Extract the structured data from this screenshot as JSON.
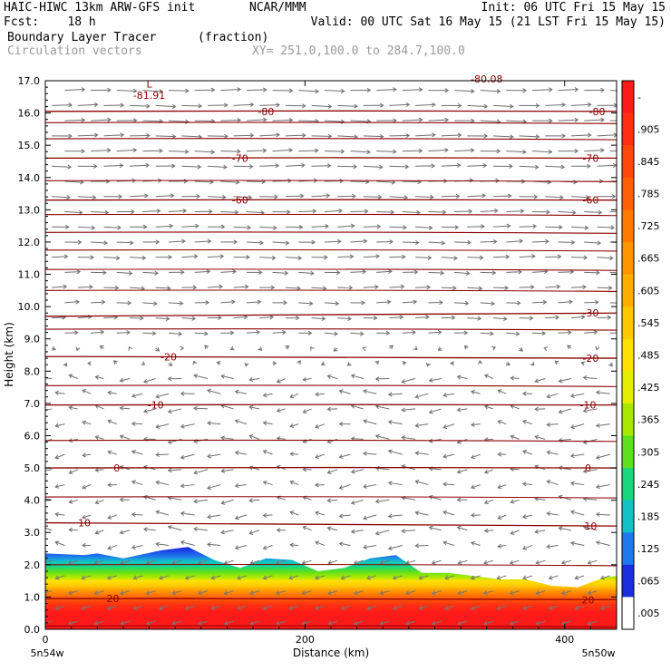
{
  "header": {
    "model": "HAIC-HIWC 13km ARW-GFS init",
    "org": "NCAR/MMM",
    "init": "Init: 06 UTC Fri 15 May 15",
    "fcst": "Fcst:    18 h",
    "valid": "Valid: 00 UTC Sat 16 May 15 (21 LST Fri 15 May 15)",
    "field": "Boundary Layer Tracer",
    "units": "(fraction)",
    "vectors": "Circulation vectors",
    "xy": "XY= 251.0,100.0 to 284.7,100.0"
  },
  "chart_data": {
    "type": "heatmap",
    "xlabel": "Distance (km)",
    "ylabel": "Height (km)",
    "xlim": [
      0,
      440
    ],
    "ylim": [
      0.0,
      17.0
    ],
    "x_ticks": [
      "0",
      "200",
      "400"
    ],
    "x_tick_values": [
      0,
      200,
      400
    ],
    "y_ticks": [
      "0.0",
      "1.0",
      "2.0",
      "3.0",
      "4.0",
      "5.0",
      "6.0",
      "7.0",
      "8.0",
      "9.0",
      "10.0",
      "11.0",
      "12.0",
      "13.0",
      "14.0",
      "15.0",
      "16.0",
      "17.0"
    ],
    "x_left_label": "5n54w",
    "x_right_label": "5n50w",
    "colorbar": {
      "labels": [
        "-",
        ".905",
        ".845",
        ".785",
        ".725",
        ".665",
        ".605",
        ".545",
        ".485",
        ".425",
        ".365",
        ".305",
        ".245",
        ".185",
        ".125",
        ".065",
        ".005"
      ],
      "colors": [
        "#ff1a1a",
        "#ff2e12",
        "#ff470c",
        "#ff6006",
        "#ff7a00",
        "#ff9500",
        "#ffae00",
        "#ffc800",
        "#ffe000",
        "#e6ee00",
        "#a8e800",
        "#5fe01c",
        "#19d77f",
        "#12c2c6",
        "#1f78ee",
        "#1a2ee0",
        "#ffffff"
      ]
    },
    "boundary_layer_top_km": {
      "x": [
        0,
        30,
        40,
        60,
        90,
        110,
        130,
        150,
        170,
        190,
        210,
        230,
        250,
        270,
        290,
        310,
        330,
        350,
        370,
        390,
        410,
        430,
        440
      ],
      "y": [
        2.35,
        2.3,
        2.35,
        2.2,
        2.45,
        2.55,
        2.15,
        1.9,
        2.2,
        2.15,
        1.8,
        1.9,
        2.2,
        2.3,
        1.75,
        1.75,
        1.65,
        1.55,
        1.55,
        1.35,
        1.3,
        1.6,
        1.65
      ]
    },
    "temperature_contours": [
      {
        "value": 20,
        "label": "20",
        "y": [
          0.95,
          0.92
        ],
        "label_positions": [
          {
            "x": 52,
            "y": 0.95
          },
          {
            "x": 418,
            "y": 0.92
          }
        ]
      },
      {
        "value": 10,
        "label": "10",
        "y": [
          3.3,
          3.2
        ],
        "label_positions": [
          {
            "x": 30,
            "y": 3.3
          },
          {
            "x": 420,
            "y": 3.2
          }
        ]
      },
      {
        "value": 0,
        "label": "0",
        "y": [
          5.0,
          5.0
        ],
        "label_positions": [
          {
            "x": 55,
            "y": 5.0
          },
          {
            "x": 418,
            "y": 5.0
          }
        ]
      },
      {
        "value": -10,
        "label": "-10",
        "y": [
          6.95,
          6.95
        ],
        "label_positions": [
          {
            "x": 85,
            "y": 6.95
          },
          {
            "x": 418,
            "y": 6.95
          }
        ]
      },
      {
        "value": -20,
        "label": "-20",
        "y": [
          8.45,
          8.4
        ],
        "label_positions": [
          {
            "x": 95,
            "y": 8.45
          },
          {
            "x": 420,
            "y": 8.4
          }
        ]
      },
      {
        "value": -30,
        "label": "-30",
        "y": [
          9.7,
          9.8
        ],
        "label_positions": [
          {
            "x": 420,
            "y": 9.8
          }
        ]
      },
      {
        "value": -60,
        "label": "-60",
        "y": [
          13.3,
          13.3
        ],
        "label_positions": [
          {
            "x": 150,
            "y": 13.3
          },
          {
            "x": 420,
            "y": 13.3
          }
        ]
      },
      {
        "value": -70,
        "label": "-70",
        "y": [
          14.6,
          14.6
        ],
        "label_positions": [
          {
            "x": 150,
            "y": 14.6
          },
          {
            "x": 420,
            "y": 14.6
          }
        ]
      },
      {
        "value": -80,
        "label": "-80",
        "y": [
          16.05,
          16.05
        ],
        "label_positions": [
          {
            "x": 170,
            "y": 16.05
          },
          {
            "x": 425,
            "y": 16.05
          }
        ]
      }
    ],
    "extra_contours_km": [
      0.1,
      2.0,
      4.1,
      5.85,
      7.55,
      9.3,
      10.5,
      11.15,
      11.75,
      12.3,
      12.85,
      13.9,
      15.2,
      15.7
    ],
    "annotations": [
      {
        "text": "L",
        "x": 80,
        "y": 16.9
      },
      {
        "text": "-81.91",
        "x": 80,
        "y": 16.55
      },
      {
        "text": "-80.08",
        "x": 340,
        "y": 17.05
      }
    ]
  }
}
